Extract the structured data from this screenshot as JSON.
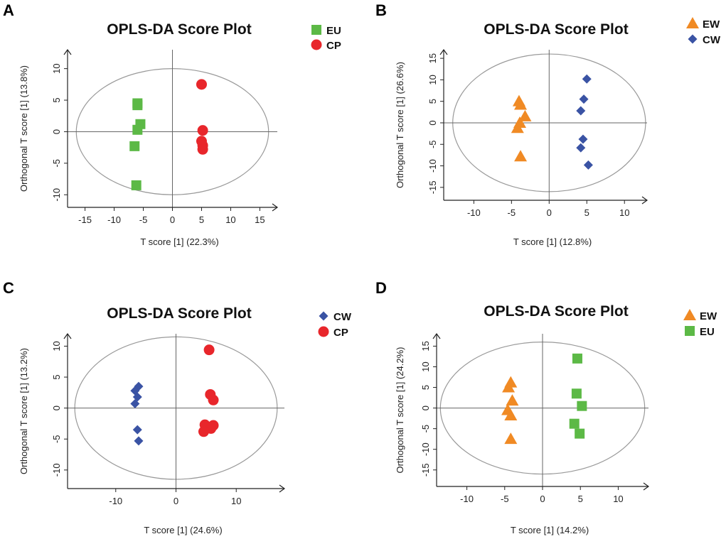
{
  "colors": {
    "green": "#5cb946",
    "red": "#e8262b",
    "orange": "#f08a24",
    "blue": "#3a53a4",
    "axis": "#222222",
    "ellipse": "#999999"
  },
  "chart_data": [
    {
      "type": "scatter",
      "panel_letter": "A",
      "title": "OPLS-DA Score Plot",
      "xlabel": "T score [1] (22.3%)",
      "ylabel": "Orthogonal T score [1] (13.8%)",
      "xlim": [
        -18,
        18
      ],
      "ylim": [
        -12,
        13
      ],
      "xticks": [
        -15,
        -10,
        -5,
        0,
        5,
        10,
        15
      ],
      "yticks": [
        -10,
        -5,
        0,
        5,
        10
      ],
      "ellipse": {
        "rx": 16.5,
        "ry": 10
      },
      "legend_position": "top-right",
      "series": [
        {
          "name": "EU",
          "marker": "square",
          "color": "#5cb946",
          "points": [
            [
              -6,
              4.5
            ],
            [
              -6,
              4.2
            ],
            [
              -5.5,
              1.2
            ],
            [
              -6,
              0.3
            ],
            [
              -6.5,
              -2.3
            ],
            [
              -6.2,
              -8.5
            ]
          ]
        },
        {
          "name": "CP",
          "marker": "circle",
          "color": "#e8262b",
          "points": [
            [
              5,
              7.5
            ],
            [
              5.2,
              0.2
            ],
            [
              5,
              -1.5
            ],
            [
              5.2,
              -2.2
            ],
            [
              5.2,
              -2.8
            ]
          ]
        }
      ]
    },
    {
      "type": "scatter",
      "panel_letter": "B",
      "title": "OPLS-DA Score Plot",
      "xlabel": "T score [1] (12.8%)",
      "ylabel": "Orthogonal T score [1] (26.6%)",
      "xlim": [
        -14,
        13
      ],
      "ylim": [
        -18,
        17
      ],
      "xticks": [
        -10,
        -5,
        0,
        5,
        10
      ],
      "yticks": [
        -15,
        -10,
        -5,
        0,
        5,
        10,
        15
      ],
      "ellipse": {
        "rx": 12.8,
        "ry": 16
      },
      "legend_position": "top-right",
      "series": [
        {
          "name": "EW",
          "marker": "triangle",
          "color": "#f08a24",
          "points": [
            [
              -4,
              5
            ],
            [
              -3.8,
              4.2
            ],
            [
              -3.2,
              1.5
            ],
            [
              -3.9,
              0
            ],
            [
              -4.2,
              -1.2
            ],
            [
              -3.8,
              -7.8
            ]
          ]
        },
        {
          "name": "CW",
          "marker": "diamond",
          "color": "#3a53a4",
          "points": [
            [
              5,
              10.2
            ],
            [
              4.6,
              5.5
            ],
            [
              4.2,
              2.8
            ],
            [
              4.5,
              -3.8
            ],
            [
              4.2,
              -5.8
            ],
            [
              5.2,
              -9.8
            ]
          ]
        }
      ]
    },
    {
      "type": "scatter",
      "panel_letter": "C",
      "title": "OPLS-DA Score Plot",
      "xlabel": "T score [1] (24.6%)",
      "ylabel": "Orthogonal T score [1] (13.2%)",
      "xlim": [
        -18,
        18
      ],
      "ylim": [
        -13,
        12
      ],
      "xticks": [
        -10,
        0,
        10
      ],
      "yticks": [
        -10,
        -5,
        0,
        5,
        10
      ],
      "ellipse": {
        "rx": 16.8,
        "ry": 11.5
      },
      "legend_position": "top-right",
      "series": [
        {
          "name": "CW",
          "marker": "diamond",
          "color": "#3a53a4",
          "points": [
            [
              -6.2,
              3.5
            ],
            [
              -6.8,
              2.8
            ],
            [
              -6.4,
              1.8
            ],
            [
              -6.8,
              0.7
            ],
            [
              -6.4,
              -3.5
            ],
            [
              -6.2,
              -5.3
            ]
          ]
        },
        {
          "name": "CP",
          "marker": "circle",
          "color": "#e8262b",
          "points": [
            [
              5.5,
              9.4
            ],
            [
              5.7,
              2.2
            ],
            [
              6.2,
              1.3
            ],
            [
              4.8,
              -2.7
            ],
            [
              6.2,
              -2.8
            ],
            [
              5.8,
              -3.3
            ],
            [
              4.6,
              -3.8
            ]
          ]
        }
      ]
    },
    {
      "type": "scatter",
      "panel_letter": "D",
      "title": "OPLS-DA Score Plot",
      "xlabel": "T score [1] (14.2%)",
      "ylabel": "Orthogonal T score [1] (24.2%)",
      "xlim": [
        -14,
        14
      ],
      "ylim": [
        -19,
        18
      ],
      "xticks": [
        -10,
        -5,
        0,
        5,
        10
      ],
      "yticks": [
        -15,
        -10,
        -5,
        0,
        5,
        10,
        15
      ],
      "ellipse": {
        "rx": 13.5,
        "ry": 16
      },
      "legend_position": "top-right",
      "series": [
        {
          "name": "EW",
          "marker": "triangle",
          "color": "#f08a24",
          "points": [
            [
              -4.2,
              6.2
            ],
            [
              -4.5,
              5
            ],
            [
              -4,
              1.8
            ],
            [
              -4.6,
              -0.5
            ],
            [
              -4.2,
              -1.8
            ],
            [
              -4.2,
              -7.5
            ]
          ]
        },
        {
          "name": "EU",
          "marker": "square",
          "color": "#5cb946",
          "points": [
            [
              4.6,
              12
            ],
            [
              4.5,
              3.5
            ],
            [
              5.2,
              0.5
            ],
            [
              4.2,
              -3.8
            ],
            [
              4.9,
              -6.2
            ]
          ]
        }
      ]
    }
  ]
}
